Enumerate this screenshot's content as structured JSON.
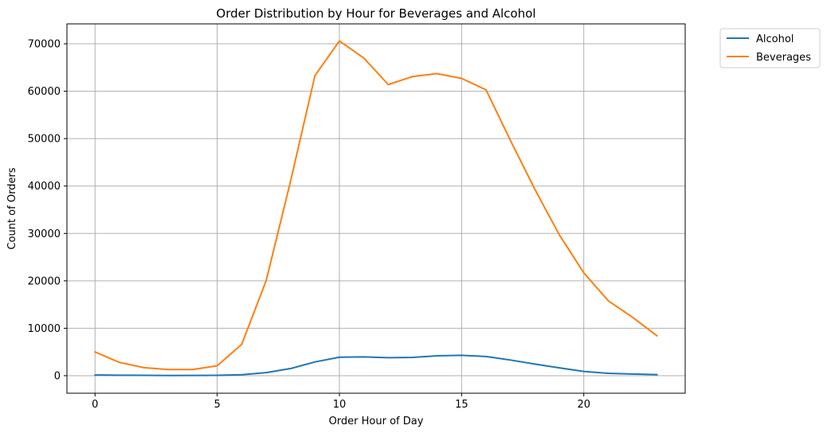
{
  "chart_data": {
    "type": "line",
    "title": "Order Distribution by Hour for Beverages and Alcohol",
    "xlabel": "Order Hour of Day",
    "ylabel": "Count of Orders",
    "x": [
      0,
      1,
      2,
      3,
      4,
      5,
      6,
      7,
      8,
      9,
      10,
      11,
      12,
      13,
      14,
      15,
      16,
      17,
      18,
      19,
      20,
      21,
      22,
      23
    ],
    "xlim": [
      -1.15,
      24.15
    ],
    "ylim": [
      -3700,
      74200
    ],
    "xticks": [
      0,
      5,
      10,
      15,
      20
    ],
    "yticks": [
      0,
      10000,
      20000,
      30000,
      40000,
      50000,
      60000,
      70000
    ],
    "grid": true,
    "legend_position": "outside-top-right",
    "series": [
      {
        "name": "Alcohol",
        "color": "#1f77b4",
        "values": [
          150,
          90,
          70,
          40,
          50,
          80,
          200,
          650,
          1500,
          2900,
          3900,
          3950,
          3800,
          3850,
          4200,
          4300,
          4050,
          3300,
          2450,
          1650,
          900,
          500,
          350,
          220
        ]
      },
      {
        "name": "Beverages",
        "color": "#ff7f0e",
        "values": [
          5000,
          2800,
          1700,
          1300,
          1300,
          2100,
          6600,
          20000,
          41000,
          63300,
          70600,
          67000,
          61400,
          63100,
          63700,
          62700,
          60300,
          49600,
          39300,
          29700,
          21700,
          15800,
          12300,
          8400
        ]
      }
    ]
  }
}
